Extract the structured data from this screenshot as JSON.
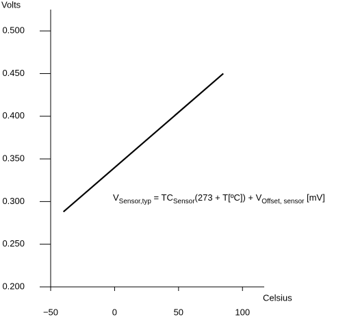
{
  "chart_data": {
    "type": "line",
    "y_label": "Volts",
    "x_label": "Celsius",
    "annotation": [
      {
        "text": "V",
        "sub": false
      },
      {
        "text": "Sensor,typ",
        "sub": true
      },
      {
        "text": " = TC",
        "sub": false
      },
      {
        "text": "Sensor",
        "sub": true
      },
      {
        "text": "(273 + T[ºC]) + V",
        "sub": false
      },
      {
        "text": "Offset, sensor",
        "sub": true
      },
      {
        "text": " [mV]",
        "sub": false
      }
    ],
    "x": [
      -40,
      85
    ],
    "series": [
      {
        "color": "#000000",
        "values": [
          0.288,
          0.45
        ]
      }
    ],
    "xlim": [
      -50,
      117
    ],
    "xticks": [
      {
        "value": -50,
        "label": "−50"
      },
      0,
      50,
      100
    ],
    "ylim": [
      0.2,
      0.525
    ],
    "yticks": [
      {
        "value": 0.2,
        "label": "0.200"
      },
      {
        "value": 0.25,
        "label": "0.250"
      },
      {
        "value": 0.3,
        "label": "0.300"
      },
      {
        "value": 0.35,
        "label": "0.350"
      },
      {
        "value": 0.4,
        "label": "0.400"
      },
      {
        "value": 0.45,
        "label": "0.450"
      },
      {
        "value": 0.5,
        "label": "0.500"
      }
    ],
    "grid": false
  }
}
